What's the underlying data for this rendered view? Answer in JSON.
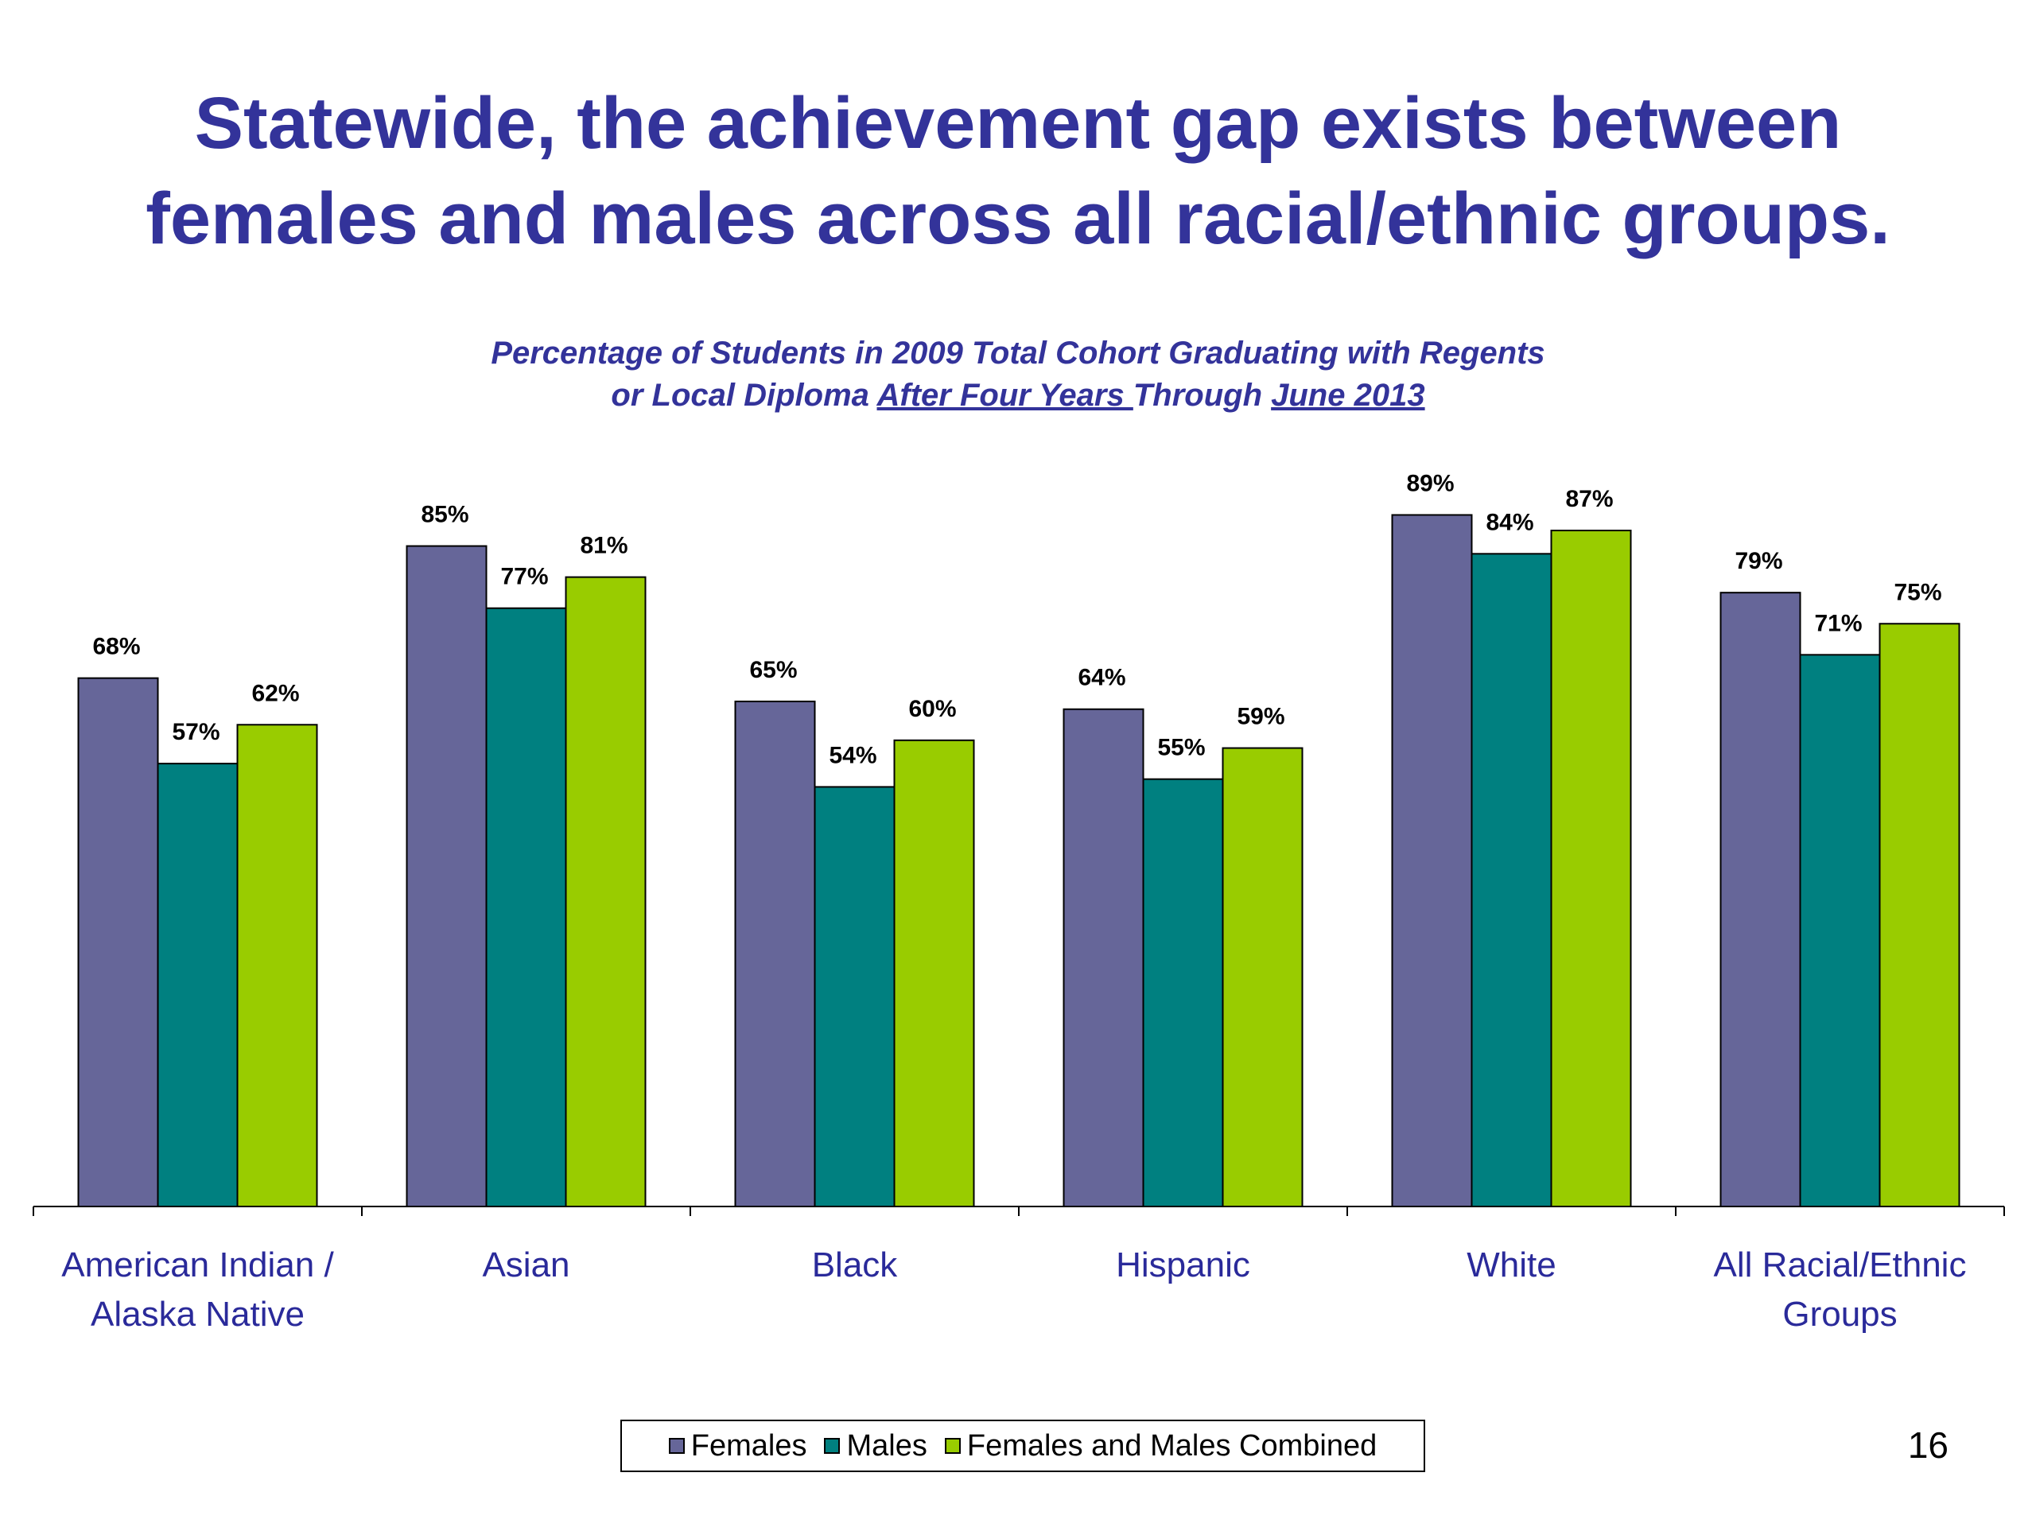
{
  "slide": {
    "title_line1": "Statewide, the achievement gap exists between",
    "title_line2": "females and males across all racial/ethnic groups.",
    "page_number": "16"
  },
  "chart_data": {
    "type": "bar",
    "subtitle": {
      "line1": "Percentage of Students in 2009 Total Cohort Graduating with Regents",
      "line2_prefix": "or Local Diploma ",
      "line2_underlined_1": "After Four Years ",
      "line2_middle": "Through ",
      "line2_underlined_2": "June 2013"
    },
    "categories": [
      [
        "American Indian /",
        "Alaska Native"
      ],
      [
        "Asian"
      ],
      [
        "Black"
      ],
      [
        "Hispanic"
      ],
      [
        "White"
      ],
      [
        "All Racial/Ethnic",
        "Groups"
      ]
    ],
    "series": [
      {
        "name": "Females",
        "color": "#666699",
        "values": [
          68,
          85,
          65,
          64,
          89,
          79
        ]
      },
      {
        "name": "Males",
        "color": "#008080",
        "values": [
          57,
          77,
          54,
          55,
          84,
          71
        ]
      },
      {
        "name": "Females and Males Combined",
        "color": "#99cc00",
        "values": [
          62,
          81,
          60,
          59,
          87,
          75
        ]
      }
    ],
    "value_suffix": "%",
    "ylim": [
      0,
      100
    ],
    "grid": false,
    "legend_position": "bottom"
  }
}
